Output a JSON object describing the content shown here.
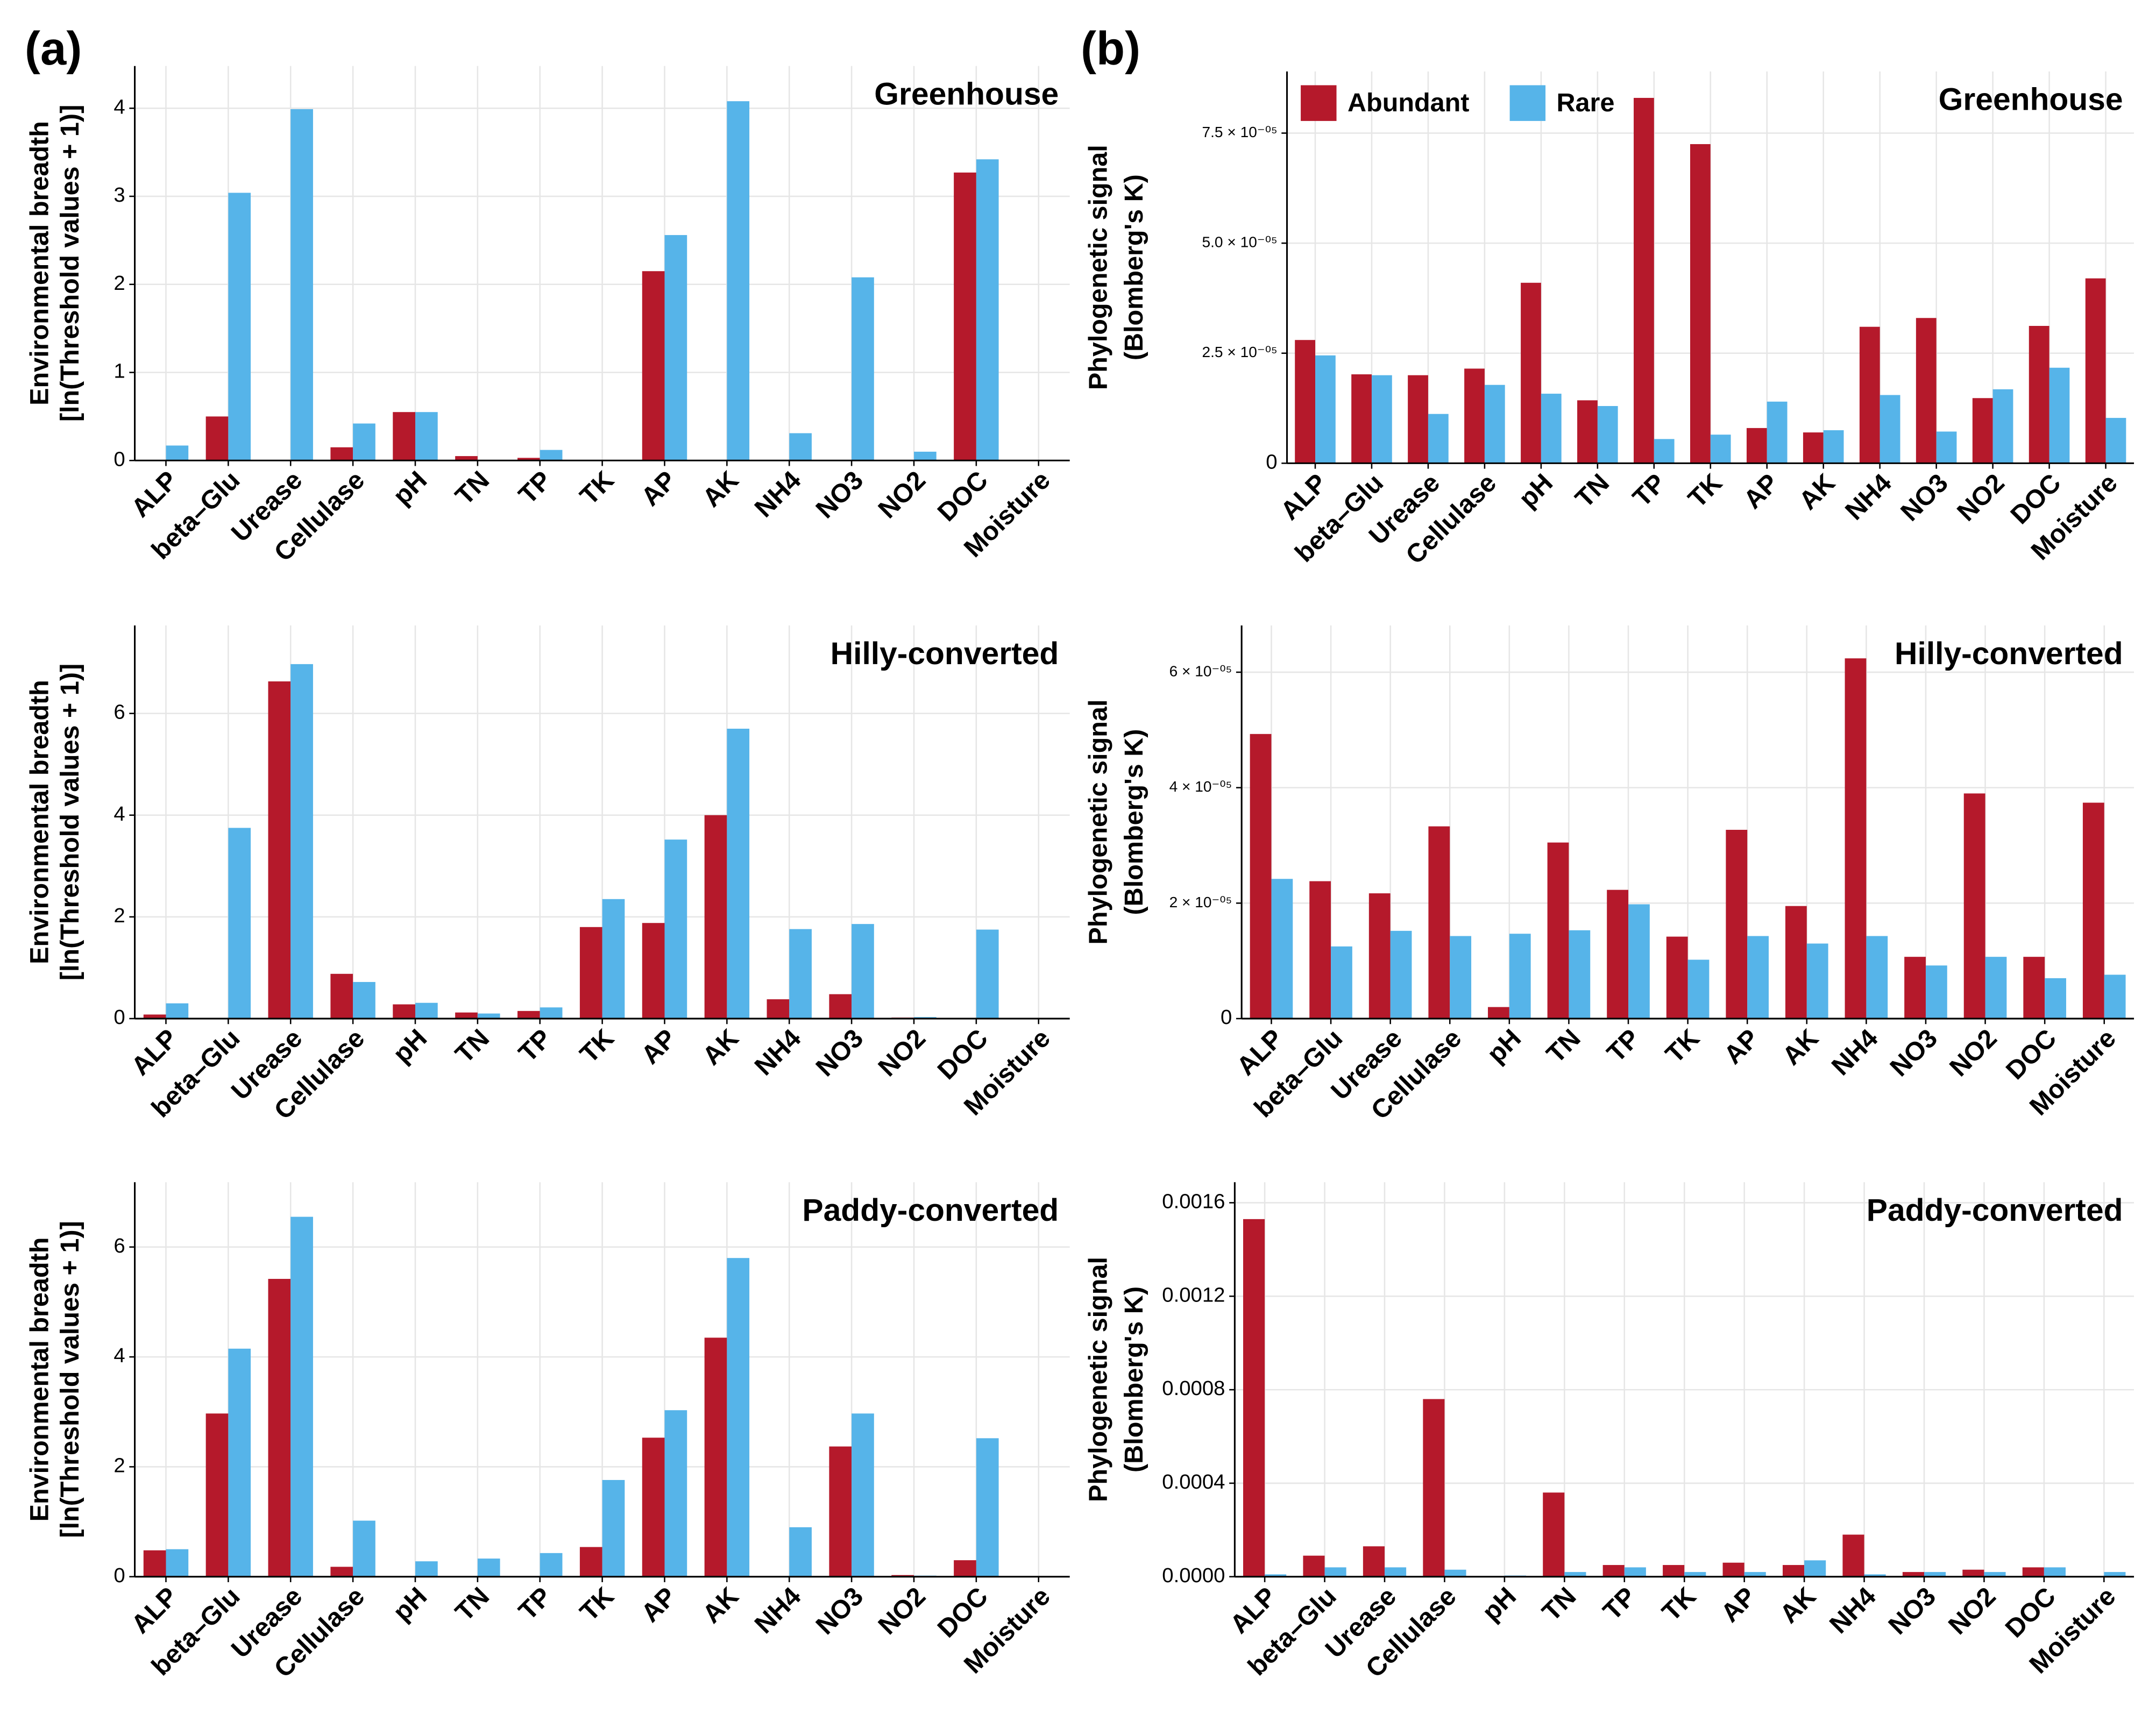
{
  "panel_labels": [
    "(a)",
    "(b)"
  ],
  "chart_data": [
    {
      "type": "bar",
      "title": "Greenhouse",
      "y_label": [
        "Environmental breadth",
        "[ln(Threshold values + 1)]"
      ],
      "categories": [
        "ALP",
        "beta–Glu",
        "Urease",
        "Cellulase",
        "pH",
        "TN",
        "TP",
        "TK",
        "AP",
        "AK",
        "NH4",
        "NO3",
        "NO2",
        "DOC",
        "Moisture"
      ],
      "series": [
        {
          "color": "#b5192b",
          "values": [
            0,
            0.5,
            0,
            0.15,
            0.55,
            0.05,
            0.03,
            0,
            2.15,
            0,
            0,
            0,
            0,
            3.27,
            0
          ]
        },
        {
          "color": "#56b4e9",
          "values": [
            0.17,
            3.04,
            3.99,
            0.42,
            0.55,
            0,
            0.12,
            0,
            2.56,
            4.08,
            0.31,
            2.08,
            0.1,
            3.42,
            0
          ]
        }
      ],
      "ylim": [
        0,
        4.48
      ],
      "yticks": [
        0,
        1,
        2,
        3,
        4
      ],
      "grid": true
    },
    {
      "type": "bar",
      "title": "Hilly-converted",
      "y_label": [
        "Environmental breadth",
        "[ln(Threshold values + 1)]"
      ],
      "categories": [
        "ALP",
        "beta–Glu",
        "Urease",
        "Cellulase",
        "pH",
        "TN",
        "TP",
        "TK",
        "AP",
        "AK",
        "NH4",
        "NO3",
        "NO2",
        "DOC",
        "Moisture"
      ],
      "series": [
        {
          "color": "#b5192b",
          "values": [
            0.08,
            0,
            6.63,
            0.88,
            0.28,
            0.12,
            0.15,
            1.8,
            1.88,
            4.0,
            0.38,
            0.48,
            0.02,
            0,
            0
          ]
        },
        {
          "color": "#56b4e9",
          "values": [
            0.3,
            3.75,
            6.97,
            0.72,
            0.31,
            0.1,
            0.22,
            2.35,
            3.52,
            5.7,
            1.76,
            1.86,
            0.03,
            1.75,
            0
          ]
        }
      ],
      "ylim": [
        0,
        7.73
      ],
      "yticks": [
        0,
        2,
        4,
        6
      ],
      "grid": true
    },
    {
      "type": "bar",
      "title": "Paddy-converted",
      "y_label": [
        "Environmental breadth",
        "[ln(Threshold values + 1)]"
      ],
      "categories": [
        "ALP",
        "beta–Glu",
        "Urease",
        "Cellulase",
        "pH",
        "TN",
        "TP",
        "TK",
        "AP",
        "AK",
        "NH4",
        "NO3",
        "NO2",
        "DOC",
        "Moisture"
      ],
      "series": [
        {
          "color": "#b5192b",
          "values": [
            0.48,
            2.97,
            5.42,
            0.18,
            0,
            0,
            0,
            0.54,
            2.53,
            4.35,
            0,
            2.37,
            0.03,
            0.3,
            0
          ]
        },
        {
          "color": "#56b4e9",
          "values": [
            0.5,
            4.15,
            6.55,
            1.02,
            0.28,
            0.33,
            0.43,
            1.76,
            3.03,
            5.8,
            0.9,
            2.97,
            0.02,
            2.52,
            0
          ]
        }
      ],
      "ylim": [
        0,
        7.18
      ],
      "yticks": [
        0,
        2,
        4,
        6
      ],
      "grid": true
    },
    {
      "type": "bar",
      "title": "Greenhouse",
      "y_label": [
        "Phylogenetic signal",
        "(Blomberg's K)"
      ],
      "categories": [
        "ALP",
        "beta–Glu",
        "Urease",
        "Cellulase",
        "pH",
        "TN",
        "TP",
        "TK",
        "AP",
        "AK",
        "NH4",
        "NO3",
        "NO2",
        "DOC",
        "Moisture"
      ],
      "series": [
        {
          "name": "Abundant",
          "color": "#b5192b",
          "values": [
            2.8e-05,
            2.02e-05,
            2e-05,
            2.15e-05,
            4.1e-05,
            1.43e-05,
            8.3e-05,
            7.25e-05,
            8e-06,
            7e-06,
            3.1e-05,
            3.3e-05,
            1.48e-05,
            3.12e-05,
            4.2e-05
          ]
        },
        {
          "name": "Rare",
          "color": "#56b4e9",
          "values": [
            2.45e-05,
            2e-05,
            1.12e-05,
            1.78e-05,
            1.58e-05,
            1.3e-05,
            5.5e-06,
            6.5e-06,
            1.4e-05,
            7.5e-06,
            1.55e-05,
            7.2e-06,
            1.68e-05,
            2.17e-05,
            1.03e-05
          ]
        }
      ],
      "ylim": [
        0,
        8.9e-05
      ],
      "yticks": [
        0,
        {
          "value": 2.5e-05,
          "label": "2.5 × 10⁻⁰⁵"
        },
        {
          "value": 5e-05,
          "label": "5.0 × 10⁻⁰⁵"
        },
        {
          "value": 7.5e-05,
          "label": "7.5 × 10⁻⁰⁵"
        }
      ],
      "grid": true,
      "legend": "top-left"
    },
    {
      "type": "bar",
      "title": "Hilly-converted",
      "y_label": [
        "Phylogenetic signal",
        "(Blomberg's K)"
      ],
      "categories": [
        "ALP",
        "beta–Glu",
        "Urease",
        "Cellulase",
        "pH",
        "TN",
        "TP",
        "TK",
        "AP",
        "AK",
        "NH4",
        "NO3",
        "NO2",
        "DOC",
        "Moisture"
      ],
      "series": [
        {
          "color": "#b5192b",
          "values": [
            4.93e-05,
            2.38e-05,
            2.17e-05,
            3.33e-05,
            2e-06,
            3.05e-05,
            2.23e-05,
            1.42e-05,
            3.27e-05,
            1.95e-05,
            6.24e-05,
            1.07e-05,
            3.9e-05,
            1.07e-05,
            3.74e-05
          ]
        },
        {
          "color": "#56b4e9",
          "values": [
            2.42e-05,
            1.25e-05,
            1.52e-05,
            1.43e-05,
            1.47e-05,
            1.53e-05,
            1.98e-05,
            1.02e-05,
            1.43e-05,
            1.3e-05,
            1.43e-05,
            9.2e-06,
            1.07e-05,
            7e-06,
            7.6e-06
          ]
        }
      ],
      "ylim": [
        0,
        6.81e-05
      ],
      "yticks": [
        0,
        {
          "value": 2e-05,
          "label": "2 × 10⁻⁰⁵"
        },
        {
          "value": 4e-05,
          "label": "4 × 10⁻⁰⁵"
        },
        {
          "value": 6e-05,
          "label": "6 × 10⁻⁰⁵"
        }
      ],
      "grid": true
    },
    {
      "type": "bar",
      "title": "Paddy-converted",
      "y_label": [
        "Phylogenetic signal",
        "(Blomberg's K)"
      ],
      "categories": [
        "ALP",
        "beta–Glu",
        "Urease",
        "Cellulase",
        "pH",
        "TN",
        "TP",
        "TK",
        "AP",
        "AK",
        "NH4",
        "NO3",
        "NO2",
        "DOC",
        "Moisture"
      ],
      "series": [
        {
          "color": "#b5192b",
          "values": [
            0.00153,
            9e-05,
            0.00013,
            0.00076,
            0,
            0.00036,
            5e-05,
            5e-05,
            6e-05,
            5e-05,
            0.00018,
            2e-05,
            3e-05,
            4e-05,
            0
          ]
        },
        {
          "color": "#56b4e9",
          "values": [
            1e-05,
            4e-05,
            4e-05,
            3e-05,
            5e-06,
            2e-05,
            4e-05,
            2e-05,
            2e-05,
            7e-05,
            1e-05,
            2e-05,
            2e-05,
            4e-05,
            2e-05
          ]
        }
      ],
      "ylim": [
        0,
        0.001688
      ],
      "yticks": [
        {
          "value": 0,
          "label": "0.0000"
        },
        0.0004,
        0.0008,
        0.0012,
        0.0016
      ],
      "grid": true
    }
  ]
}
